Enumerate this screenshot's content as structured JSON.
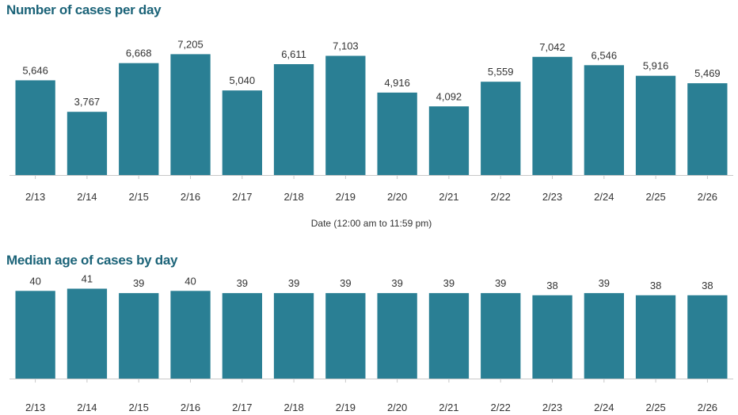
{
  "colors": {
    "bar": "#2a7f94",
    "title": "#1b6378",
    "text": "#333333",
    "axis": "#c8c8c8"
  },
  "chart_data": [
    {
      "type": "bar",
      "title": "Number of cases per day",
      "xlabel": "Date (12:00 am to 11:59 pm)",
      "ylabel": "",
      "categories": [
        "2/13",
        "2/14",
        "2/15",
        "2/16",
        "2/17",
        "2/18",
        "2/19",
        "2/20",
        "2/21",
        "2/22",
        "2/23",
        "2/24",
        "2/25",
        "2/26"
      ],
      "values": [
        5646,
        3767,
        6668,
        7205,
        5040,
        6611,
        7103,
        4916,
        4092,
        5559,
        7042,
        6546,
        5916,
        5469
      ],
      "value_labels": [
        "5,646",
        "3,767",
        "6,668",
        "7,205",
        "5,040",
        "6,611",
        "7,103",
        "4,916",
        "4,092",
        "5,559",
        "7,042",
        "6,546",
        "5,916",
        "5,469"
      ],
      "ylim": [
        0,
        7600
      ],
      "grid": false,
      "legend": "none"
    },
    {
      "type": "bar",
      "title": "Median age of cases by day",
      "xlabel": "",
      "ylabel": "",
      "categories": [
        "2/13",
        "2/14",
        "2/15",
        "2/16",
        "2/17",
        "2/18",
        "2/19",
        "2/20",
        "2/21",
        "2/22",
        "2/23",
        "2/24",
        "2/25",
        "2/26"
      ],
      "values": [
        40,
        41,
        39,
        40,
        39,
        39,
        39,
        39,
        39,
        39,
        38,
        39,
        38,
        38
      ],
      "value_labels": [
        "40",
        "41",
        "39",
        "40",
        "39",
        "39",
        "39",
        "39",
        "39",
        "39",
        "38",
        "39",
        "38",
        "38"
      ],
      "ylim": [
        0,
        43
      ],
      "grid": false,
      "legend": "none"
    }
  ]
}
